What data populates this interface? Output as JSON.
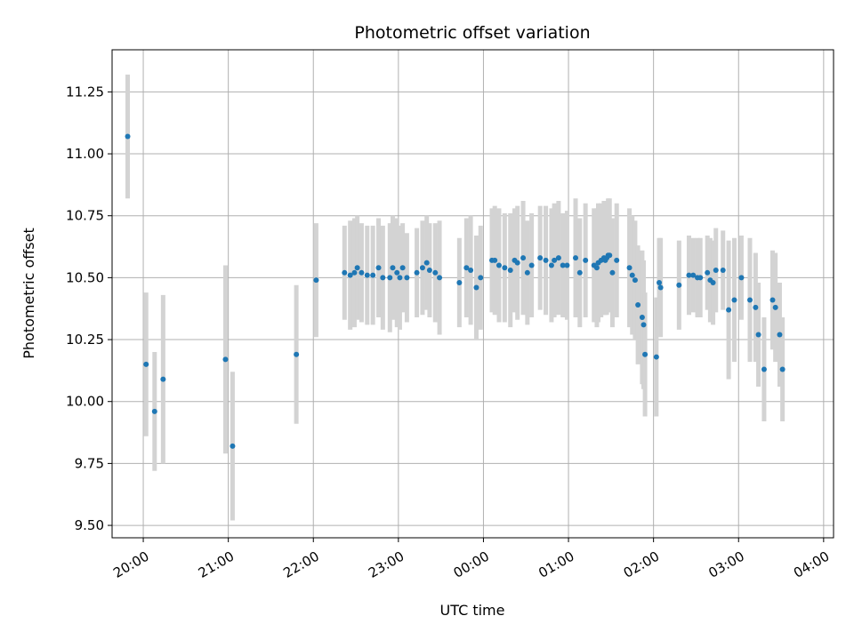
{
  "chart_data": {
    "type": "scatter",
    "title": "Photometric offset variation",
    "xlabel": "UTC time",
    "ylabel": "Photometric offset",
    "x_unit": "time (HH:MM, UTC); night crosses midnight",
    "xlim": [
      "19:38",
      "04:07"
    ],
    "ylim": [
      9.45,
      11.42
    ],
    "x_ticks": [
      "20:00",
      "21:00",
      "22:00",
      "23:00",
      "00:00",
      "01:00",
      "02:00",
      "03:00",
      "04:00"
    ],
    "y_ticks": [
      "9.50",
      "9.75",
      "10.00",
      "10.25",
      "10.50",
      "10.75",
      "11.00",
      "11.25"
    ],
    "grid": true,
    "colors": {
      "point": "#1f77b4",
      "errorbar": "#d3d3d3",
      "grid": "#b0b0b0"
    },
    "series": [
      {
        "x": [
          "19:49",
          "20:02",
          "20:08",
          "20:14",
          "20:58",
          "21:03",
          "21:48",
          "22:02",
          "22:22",
          "22:26",
          "22:29",
          "22:31",
          "22:34",
          "22:38",
          "22:42",
          "22:46",
          "22:49",
          "22:54",
          "22:56",
          "22:59",
          "23:01",
          "23:03",
          "23:06",
          "23:13",
          "23:17",
          "23:20",
          "23:22",
          "23:26",
          "23:29",
          "23:43",
          "23:48",
          "23:51",
          "23:55",
          "23:58",
          "00:06",
          "00:08",
          "00:11",
          "00:15",
          "00:19",
          "00:22",
          "00:24",
          "00:28",
          "00:31",
          "00:34",
          "00:40",
          "00:44",
          "00:48",
          "00:50",
          "00:53",
          "00:56",
          "00:59",
          "01:05",
          "01:08",
          "01:12",
          "01:18",
          "01:20",
          "01:21",
          "01:23",
          "01:25",
          "01:26",
          "01:27",
          "01:28",
          "01:29",
          "01:31",
          "01:34",
          "01:43",
          "01:45",
          "01:47",
          "01:49",
          "01:52",
          "01:53",
          "01:54",
          "02:02",
          "02:04",
          "02:05",
          "02:18",
          "02:25",
          "02:28",
          "02:31",
          "02:33",
          "02:38",
          "02:40",
          "02:42",
          "02:44",
          "02:49",
          "02:53",
          "02:57",
          "03:02",
          "03:08",
          "03:12",
          "03:14",
          "03:18",
          "03:24",
          "03:26",
          "03:29",
          "03:31"
        ],
        "y": [
          11.07,
          10.15,
          9.96,
          10.09,
          10.17,
          9.82,
          10.19,
          10.49,
          10.52,
          10.51,
          10.52,
          10.54,
          10.52,
          10.51,
          10.51,
          10.54,
          10.5,
          10.5,
          10.54,
          10.52,
          10.5,
          10.54,
          10.5,
          10.52,
          10.54,
          10.56,
          10.53,
          10.52,
          10.5,
          10.48,
          10.54,
          10.53,
          10.46,
          10.5,
          10.57,
          10.57,
          10.55,
          10.54,
          10.53,
          10.57,
          10.56,
          10.58,
          10.52,
          10.55,
          10.58,
          10.57,
          10.55,
          10.57,
          10.58,
          10.55,
          10.55,
          10.58,
          10.52,
          10.57,
          10.55,
          10.54,
          10.56,
          10.57,
          10.58,
          10.57,
          10.58,
          10.59,
          10.59,
          10.52,
          10.57,
          10.54,
          10.51,
          10.49,
          10.39,
          10.34,
          10.31,
          10.19,
          10.18,
          10.48,
          10.46,
          10.47,
          10.51,
          10.51,
          10.5,
          10.5,
          10.52,
          10.49,
          10.48,
          10.53,
          10.53,
          10.37,
          10.41,
          10.5,
          10.41,
          10.38,
          10.27,
          10.13,
          10.41,
          10.38,
          10.27,
          10.13
        ],
        "err": [
          0.25,
          0.29,
          0.24,
          0.34,
          0.38,
          0.3,
          0.28,
          0.23,
          0.19,
          0.22,
          0.22,
          0.21,
          0.2,
          0.2,
          0.2,
          0.2,
          0.21,
          0.22,
          0.21,
          0.22,
          0.21,
          0.18,
          0.18,
          0.18,
          0.19,
          0.19,
          0.19,
          0.2,
          0.23,
          0.18,
          0.2,
          0.22,
          0.21,
          0.21,
          0.21,
          0.22,
          0.23,
          0.22,
          0.23,
          0.21,
          0.23,
          0.23,
          0.21,
          0.21,
          0.21,
          0.22,
          0.23,
          0.23,
          0.23,
          0.21,
          0.22,
          0.24,
          0.22,
          0.23,
          0.23,
          0.24,
          0.24,
          0.23,
          0.23,
          0.22,
          0.23,
          0.23,
          0.23,
          0.22,
          0.23,
          0.24,
          0.24,
          0.24,
          0.24,
          0.27,
          0.26,
          0.25,
          0.24,
          0.18,
          0.2,
          0.18,
          0.16,
          0.15,
          0.16,
          0.16,
          0.15,
          0.17,
          0.17,
          0.17,
          0.16,
          0.28,
          0.25,
          0.17,
          0.25,
          0.22,
          0.21,
          0.21,
          0.2,
          0.22,
          0.21,
          0.21
        ]
      }
    ]
  }
}
